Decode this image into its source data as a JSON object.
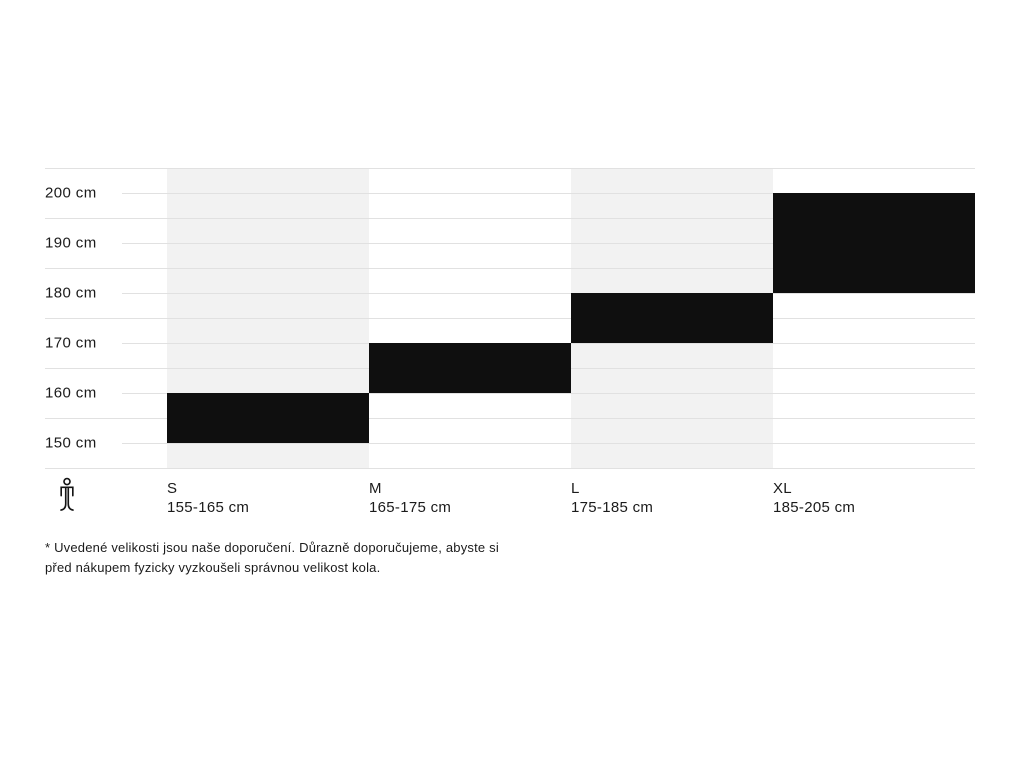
{
  "chart_data": {
    "type": "bar",
    "subtype": "vertical-range-size-chart",
    "title": "",
    "categories": [
      "S",
      "M",
      "L",
      "XL"
    ],
    "series": [
      {
        "name": "recommended-rider-height",
        "ranges_cm": [
          [
            155,
            165
          ],
          [
            165,
            175
          ],
          [
            175,
            185
          ],
          [
            185,
            205
          ]
        ]
      }
    ],
    "range_labels": [
      "155-165 cm",
      "165-175 cm",
      "175-185 cm",
      "185-205 cm"
    ],
    "y_tick_labels": [
      "200 cm",
      "190 cm",
      "180 cm",
      "170 cm",
      "160 cm",
      "150 cm"
    ],
    "y_unit": "cm",
    "ylim_cm": [
      145,
      205
    ],
    "grid": "horizontal",
    "legend_position": "none",
    "shaded_columns": [
      "S",
      "L"
    ],
    "colors": {
      "bar": "#0f0f0f",
      "column_shade": "#f2f2f2",
      "gridline": "#e1e1e1",
      "text": "#1b1b1b",
      "background": "#ffffff"
    }
  },
  "axis_icon": {
    "name": "person-height-icon"
  },
  "footnote": {
    "line1": "* Uvedené velikosti jsou naše doporučení. Důrazně doporučujeme, abyste si",
    "line2": "před nákupem fyzicky vyzkoušeli správnou velikost kola."
  }
}
